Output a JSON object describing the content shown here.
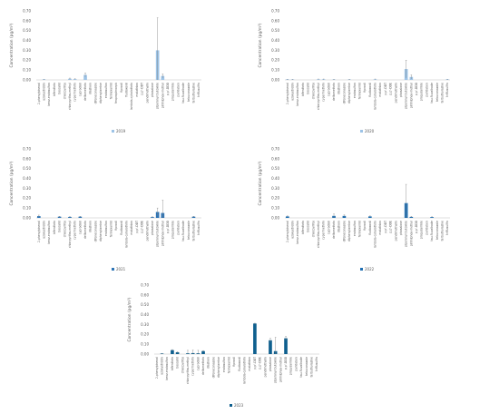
{
  "chart_data": [
    {
      "type": "bar",
      "ylabel": "Concentration (pg/m³)",
      "ylim": [
        0,
        0.7
      ],
      "ticks": [
        "0.00",
        "0.10",
        "0.20",
        "0.30",
        "0.40",
        "0.50",
        "0.60",
        "0.70"
      ],
      "color": "#9dc3e6",
      "categories": [
        "2-phenylphenol",
        "azoxystrobin",
        "benz-endosulfan",
        "bifenthrin",
        "boscalid",
        "chlorpyrifos",
        "chlorpyrifos-methyl",
        "cypermethrin",
        "cyprodinil",
        "deltamethrin",
        "diazinon",
        "difenoconazole",
        "diphenylamine",
        "endosulfan",
        "fenhexamid",
        "fenpropimorph",
        "fipronil",
        "fludioxonil",
        "lambda-cyhalothrin",
        "malathion",
        "p,p'-DDT",
        "pendimethalin",
        "phosalone",
        "piperonyl butoxide",
        "pirimiphos-methyl",
        "p,p'-DDD",
        "propyzamide",
        "pyridaben",
        "tau-fluvalinate",
        "tebuconazole",
        "terbuthylazine",
        "triflusulfin"
      ],
      "series": [
        {
          "name": "2019",
          "values": [
            0,
            0.005,
            0,
            0,
            0,
            0,
            0.012,
            0.008,
            0,
            0.05,
            0,
            0,
            0,
            0,
            0,
            0,
            0,
            0,
            0,
            0,
            0,
            0,
            0,
            0.3,
            0.04,
            0,
            0,
            0,
            0,
            0,
            0,
            0
          ],
          "errors": [
            0,
            0.002,
            0,
            0,
            0,
            0,
            0.006,
            0.004,
            0,
            0.02,
            0,
            0,
            0,
            0,
            0,
            0,
            0,
            0,
            0,
            0,
            0,
            0,
            0,
            0.33,
            0.02,
            0,
            0,
            0,
            0,
            0,
            0,
            0
          ]
        }
      ]
    },
    {
      "type": "bar",
      "ylabel": "Concentration (pg/m³)",
      "ylim": [
        0,
        0.7
      ],
      "ticks": [
        "0.00",
        "0.10",
        "0.20",
        "0.30",
        "0.40",
        "0.50",
        "0.60",
        "0.70"
      ],
      "color": "#9dc3e6",
      "categories": [
        "2-phenylphenol",
        "azoxystrobin",
        "benz-endosulfan",
        "bifenthrin",
        "boscalid",
        "chlorpyrifos",
        "chlorpyrifos-methyl",
        "cypermethrin",
        "cyprodinil",
        "deltamethrin",
        "diazinon",
        "difenoconazole",
        "diphenylamine",
        "endosulfan",
        "fenhexamid",
        "fipronil",
        "fludioxonil",
        "lambda-cyhalothrin",
        "malathion",
        "p,p'-DDT",
        "p,p'-DDE",
        "pendimethalin",
        "phosalone",
        "piperonyl butoxide",
        "pirimiphos-methyl",
        "p,p'-DDD",
        "propyzamide",
        "pyridaben",
        "tau-fluvalinate",
        "tebuconazole",
        "terbuthylazine",
        "triflusulfin"
      ],
      "series": [
        {
          "name": "2020",
          "values": [
            0.005,
            0.004,
            0,
            0,
            0,
            0,
            0.006,
            0.006,
            0,
            0.004,
            0,
            0,
            0.004,
            0,
            0,
            0,
            0,
            0.006,
            0,
            0,
            0,
            0,
            0,
            0.11,
            0.03,
            0,
            0,
            0,
            0,
            0,
            0,
            0.005
          ],
          "errors": [
            0.002,
            0.002,
            0,
            0,
            0,
            0,
            0.003,
            0.003,
            0,
            0.002,
            0,
            0,
            0.002,
            0,
            0,
            0,
            0,
            0.003,
            0,
            0,
            0,
            0,
            0,
            0.09,
            0.02,
            0,
            0,
            0,
            0,
            0,
            0,
            0.002
          ]
        }
      ]
    },
    {
      "type": "bar",
      "ylabel": "Concentration (pg/m³)",
      "ylim": [
        0,
        0.7
      ],
      "ticks": [
        "0.00",
        "0.10",
        "0.20",
        "0.30",
        "0.40",
        "0.50",
        "0.60",
        "0.70"
      ],
      "color": "#2e75b6",
      "categories": [
        "2-phenylphenol",
        "azoxystrobin",
        "benz-endosulfan",
        "bifenthrin",
        "boscalid",
        "chlorpyrifos",
        "chlorpyrifos-methyl",
        "cypermethrin",
        "cyprodinil",
        "deltamethrin",
        "diazinon",
        "difenoconazole",
        "diphenylamine",
        "endosulfan",
        "fenhexamid",
        "fipronil",
        "fludioxonil",
        "lambda-cyhalothrin",
        "malathion",
        "p,p'-DDT",
        "p,p'-DDE",
        "pendimethalin",
        "phosalone",
        "piperonyl butoxide",
        "pirimiphos-methyl",
        "p,p'-DDD",
        "propyzamide",
        "pyridaben",
        "tau-fluvalinate",
        "tebuconazole",
        "terbuthylazine",
        "triflusulfin"
      ],
      "series": [
        {
          "name": "2021",
          "values": [
            0.018,
            0,
            0,
            0,
            0.012,
            0,
            0.01,
            0,
            0.012,
            0,
            0,
            0,
            0,
            0,
            0,
            0,
            0,
            0,
            0,
            0,
            0,
            0,
            0.008,
            0.06,
            0.05,
            0,
            0,
            0,
            0,
            0,
            0.012,
            0
          ],
          "errors": [
            0.01,
            0,
            0,
            0,
            0.004,
            0,
            0.004,
            0,
            0.004,
            0,
            0,
            0,
            0,
            0,
            0,
            0,
            0,
            0,
            0,
            0,
            0,
            0,
            0.004,
            0.04,
            0.13,
            0,
            0,
            0,
            0,
            0,
            0.004,
            0
          ]
        }
      ]
    },
    {
      "type": "bar",
      "ylabel": "Concentration (pg/m³)",
      "ylim": [
        0,
        0.7
      ],
      "ticks": [
        "0.00",
        "0.10",
        "0.20",
        "0.30",
        "0.40",
        "0.50",
        "0.60",
        "0.70"
      ],
      "color": "#1f6fb2",
      "categories": [
        "2-phenylphenol",
        "azoxystrobin",
        "benz-endosulfan",
        "bifenthrin",
        "boscalid",
        "chlorpyrifos",
        "chlorpyrifos-methyl",
        "cypermethrin",
        "cyprodinil",
        "deltamethrin",
        "diazinon",
        "difenoconazole",
        "diphenylamine",
        "endosulfan",
        "fenhexamid",
        "fipronil",
        "fludioxonil",
        "lambda-cyhalothrin",
        "malathion",
        "p,p'-DDT",
        "p,p'-DDE",
        "pendimethalin",
        "phosalone",
        "piperonyl butoxide",
        "pirimiphos-methyl",
        "p,p'-DDD",
        "propyzamide",
        "pyridaben",
        "tau-fluvalinate",
        "tebuconazole",
        "terbuthylazine",
        "triflusulfin"
      ],
      "series": [
        {
          "name": "2022",
          "values": [
            0.015,
            0,
            0,
            0,
            0,
            0,
            0,
            0,
            0,
            0.02,
            0,
            0.02,
            0,
            0,
            0,
            0,
            0.015,
            0,
            0,
            0,
            0,
            0,
            0,
            0.15,
            0.01,
            0,
            0,
            0,
            0.008,
            0,
            0,
            0
          ],
          "errors": [
            0.005,
            0,
            0,
            0,
            0,
            0,
            0,
            0,
            0,
            0.02,
            0,
            0.01,
            0,
            0,
            0,
            0,
            0.005,
            0,
            0,
            0,
            0,
            0,
            0,
            0.19,
            0.005,
            0,
            0,
            0,
            0.004,
            0,
            0,
            0
          ]
        }
      ]
    },
    {
      "type": "bar",
      "ylabel": "Concentration (pg/m³)",
      "ylim": [
        0,
        0.7
      ],
      "ticks": [
        "0.00",
        "0.10",
        "0.20",
        "0.30",
        "0.40",
        "0.50",
        "0.60",
        "0.70"
      ],
      "color": "#0e5f8e",
      "categories": [
        "2-phenylphenol",
        "azoxystrobin",
        "benz-endosulfan",
        "bifenthrin",
        "boscalid",
        "chlorpyrifos",
        "chlorpyrifos-methyl",
        "cypermethrin",
        "cyprodinil",
        "deltamethrin",
        "diazinon",
        "difenoconazole",
        "diphenylamine",
        "endosulfan",
        "fenhexamid",
        "fipronil",
        "fludioxonil",
        "lambda-cyhalothrin",
        "malathion",
        "p,p'-DDT",
        "p,p'-DDE",
        "pendimethalin",
        "phosalone",
        "piperonyl butoxide",
        "pirimiphos-methyl",
        "p,p'-DDD",
        "propyzamide",
        "pyridaben",
        "tau-fluvalinate",
        "tebuconazole",
        "terbuthylazine",
        "triflusulfin"
      ],
      "series": [
        {
          "name": "2023",
          "values": [
            0,
            0.005,
            0,
            0.04,
            0.018,
            0,
            0.008,
            0.01,
            0.008,
            0.03,
            0,
            0,
            0,
            0,
            0,
            0,
            0,
            0,
            0,
            0.31,
            0,
            0,
            0.14,
            0.03,
            0,
            0.16,
            0,
            0,
            0,
            0,
            0,
            0
          ],
          "errors": [
            0,
            0.002,
            0,
            0.005,
            0.005,
            0,
            0.03,
            0.03,
            0.03,
            0.005,
            0,
            0,
            0,
            0,
            0,
            0,
            0,
            0,
            0,
            0.003,
            0,
            0,
            0.02,
            0.14,
            0,
            0.02,
            0,
            0,
            0,
            0,
            0,
            0
          ]
        }
      ]
    }
  ]
}
